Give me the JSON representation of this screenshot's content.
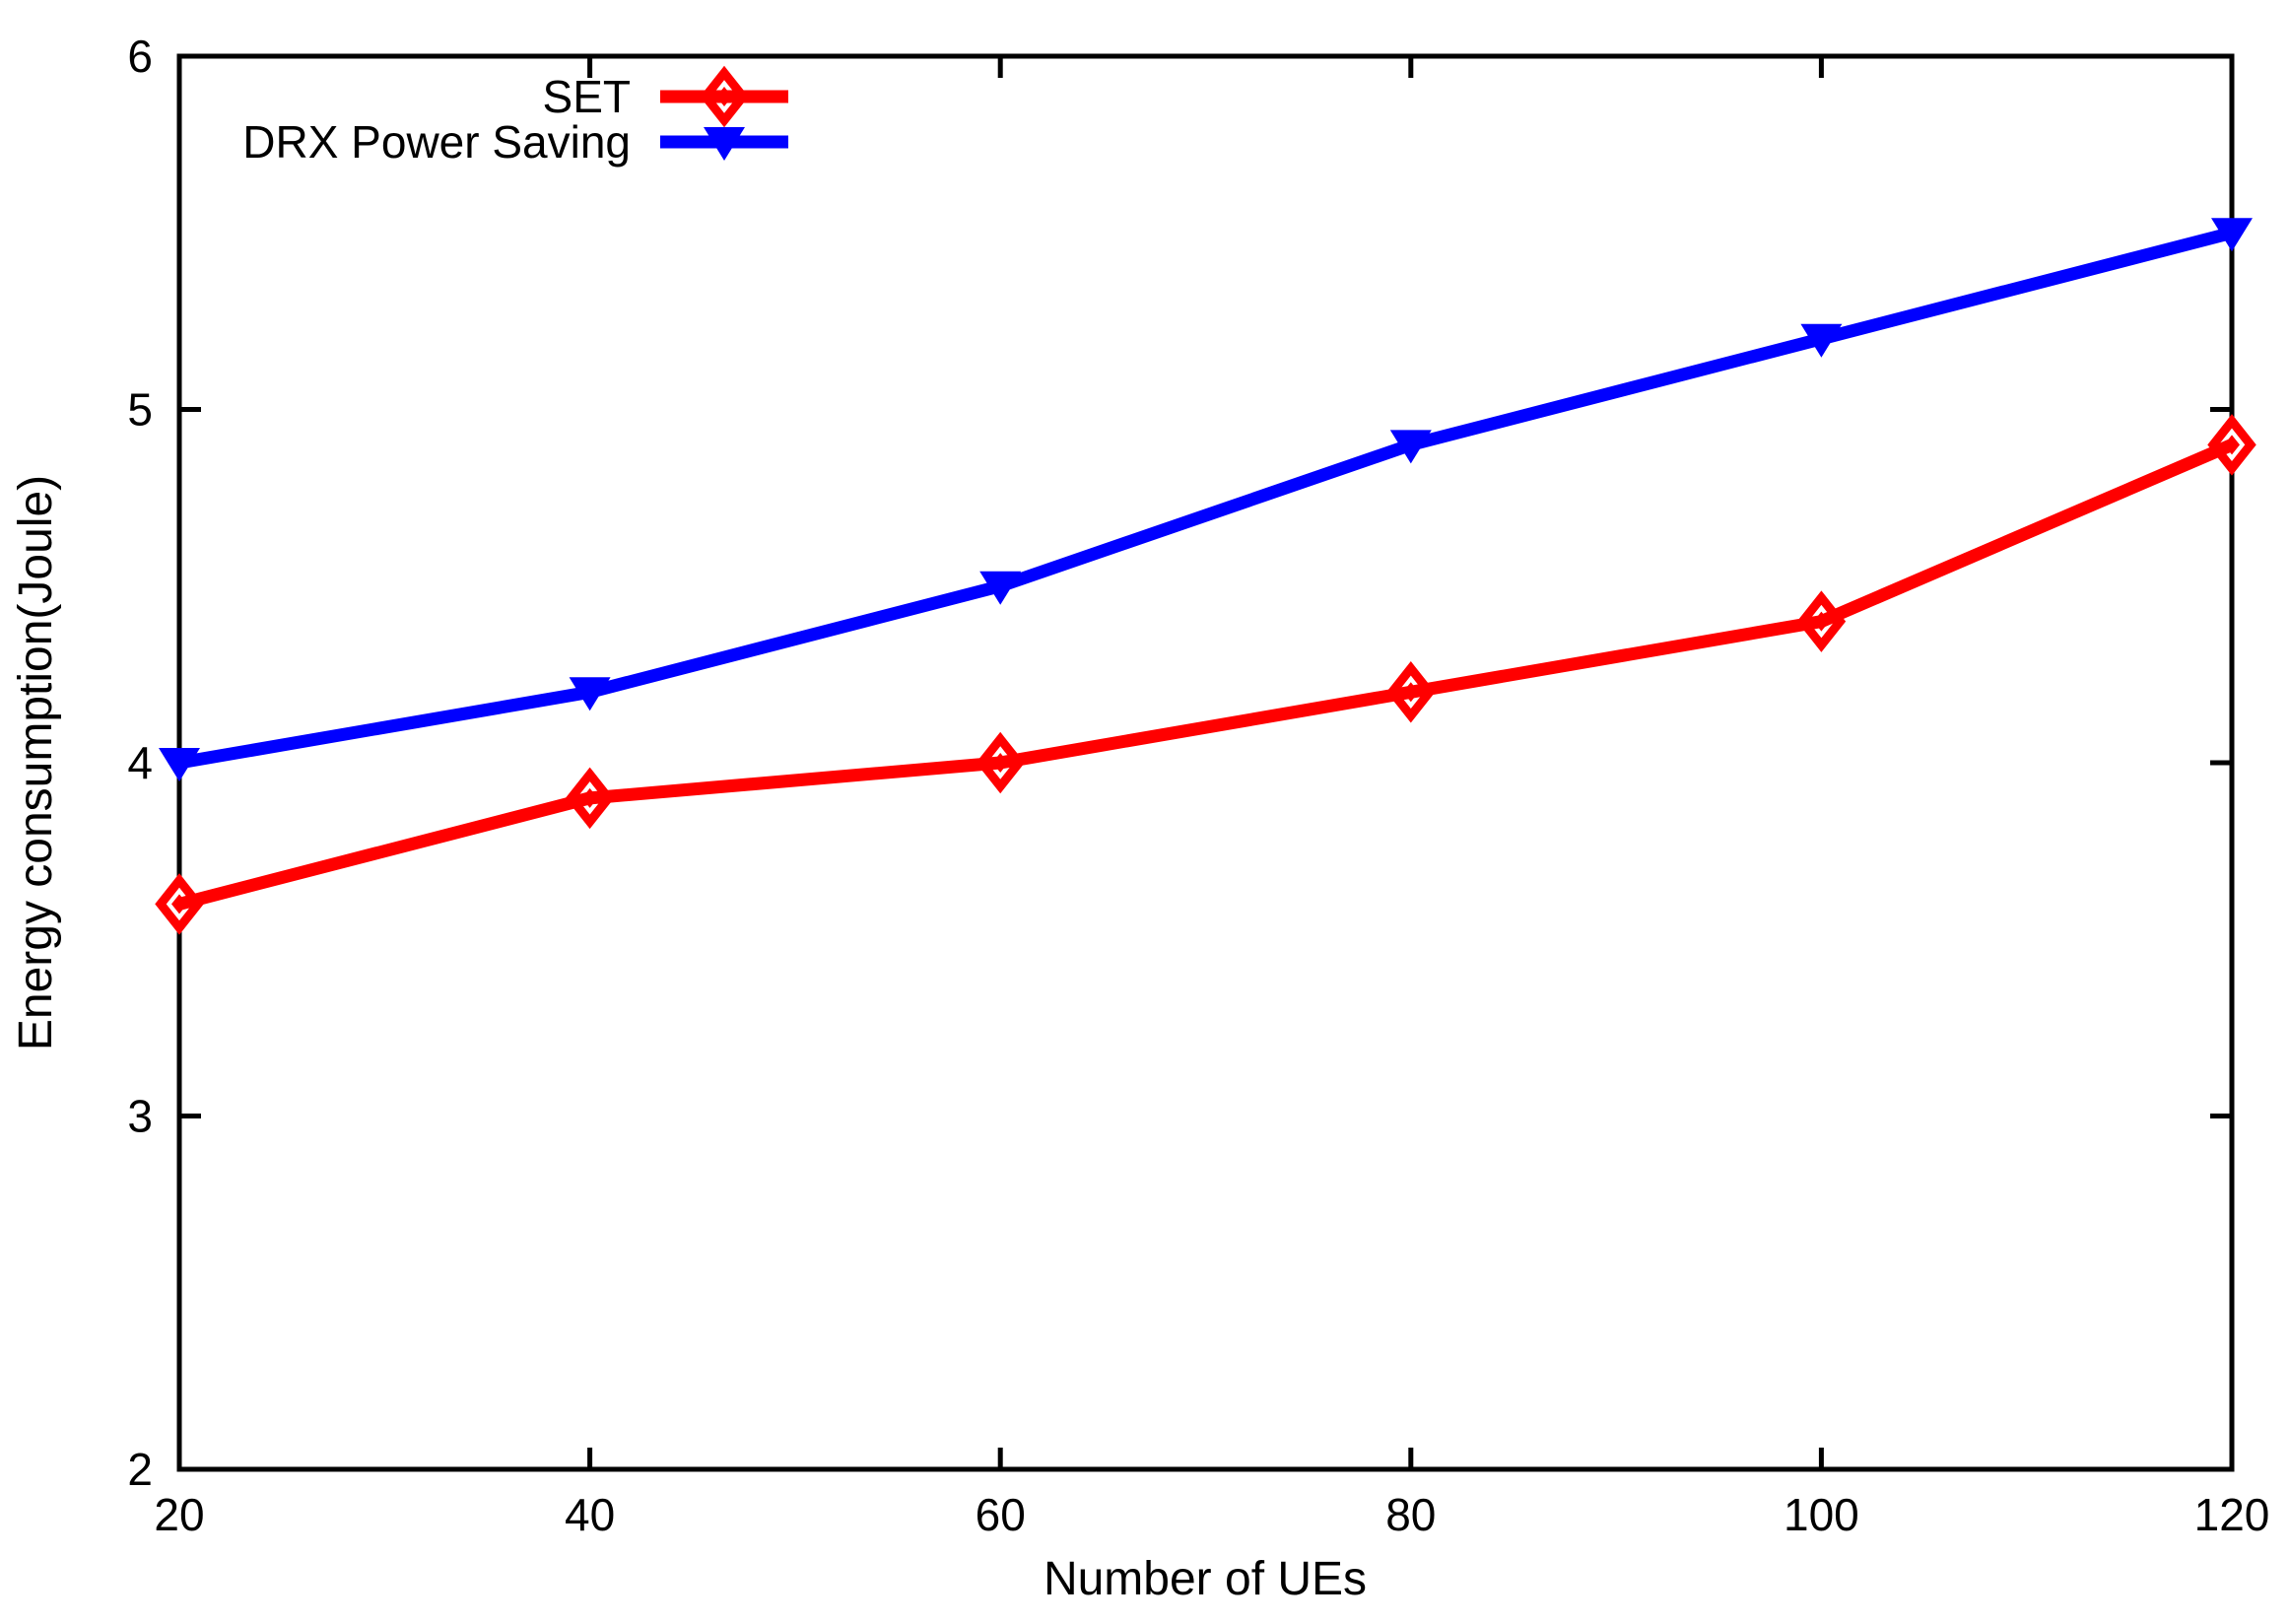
{
  "chart_data": {
    "type": "line",
    "title": "",
    "xlabel": "Number of UEs",
    "ylabel": "Energy consumption(Joule)",
    "x": [
      20,
      40,
      60,
      80,
      100,
      120
    ],
    "xlim": [
      20,
      120
    ],
    "ylim": [
      2,
      6
    ],
    "xticks": [
      20,
      40,
      60,
      80,
      100,
      120
    ],
    "yticks": [
      2,
      3,
      4,
      5,
      6
    ],
    "grid": false,
    "tick_style": "inward-mirrored",
    "legend_position": "top-inside-left-of-center",
    "axis_color": "#000000",
    "background": "#ffffff",
    "series": [
      {
        "name": "SET",
        "color": "#ff0000",
        "marker": "open-diamond-with-center-dot",
        "values": [
          3.6,
          3.9,
          4.0,
          4.2,
          4.4,
          4.9
        ]
      },
      {
        "name": "DRX Power Saving",
        "color": "#0000ff",
        "marker": "filled-triangle-down",
        "values": [
          4.0,
          4.2,
          4.5,
          4.9,
          5.2,
          5.5
        ]
      }
    ]
  }
}
